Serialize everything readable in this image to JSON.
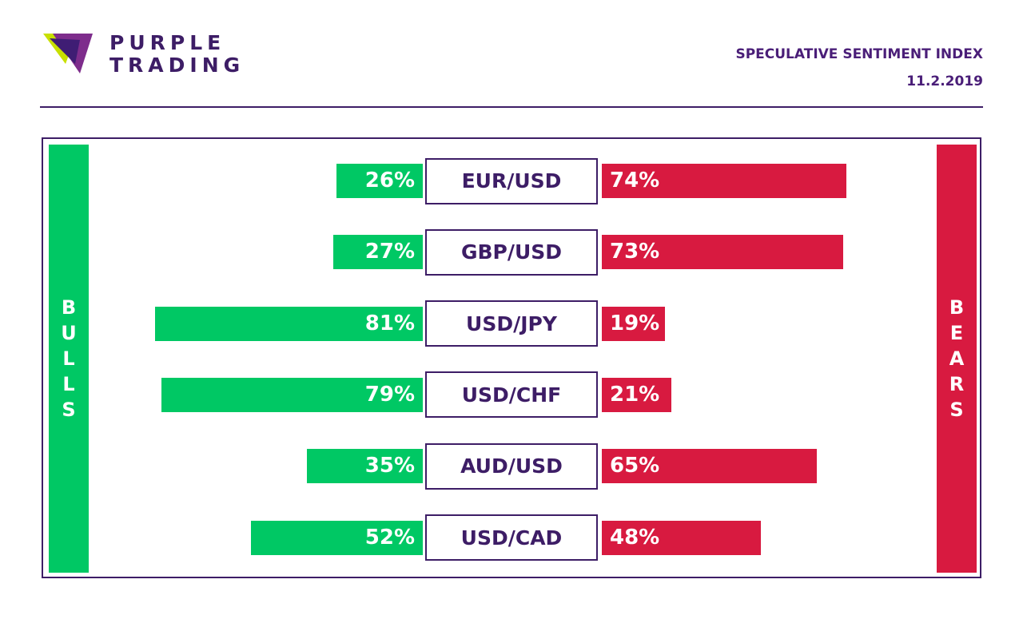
{
  "brand": {
    "name_line1": "PURPLE",
    "name_line2": "TRADING",
    "colors": {
      "purple": "#4a1e78",
      "lime": "#c8e000",
      "violet": "#7e2d8c"
    }
  },
  "header": {
    "title": "SPECULATIVE SENTIMENT INDEX",
    "date": "11.2.2019"
  },
  "legend": {
    "bulls_label": "BULLS",
    "bears_label": "BEARS"
  },
  "colors": {
    "bulls": "#00c864",
    "bears": "#d81a40",
    "frame": "#3d1d66"
  },
  "chart_data": {
    "type": "bar",
    "title": "SPECULATIVE SENTIMENT INDEX",
    "categories": [
      "EUR/USD",
      "GBP/USD",
      "USD/JPY",
      "USD/CHF",
      "AUD/USD",
      "USD/CAD"
    ],
    "series": [
      {
        "name": "BULLS",
        "values": [
          26,
          27,
          81,
          79,
          35,
          52
        ]
      },
      {
        "name": "BEARS",
        "values": [
          74,
          73,
          19,
          21,
          65,
          48
        ]
      }
    ],
    "value_labels": {
      "bulls": [
        "26%",
        "27%",
        "81%",
        "79%",
        "35%",
        "52%"
      ],
      "bears": [
        "74%",
        "73%",
        "19%",
        "21%",
        "65%",
        "48%"
      ]
    },
    "ylim": [
      0,
      100
    ]
  }
}
